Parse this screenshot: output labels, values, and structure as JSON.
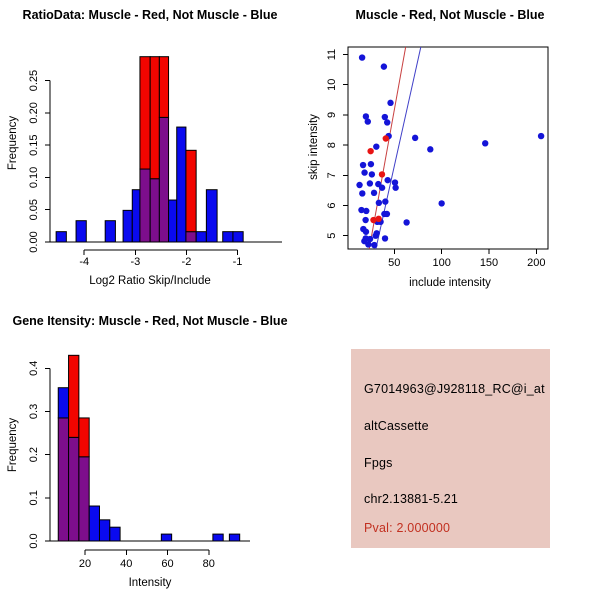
{
  "colors": {
    "red": "#F20500",
    "blue": "#0A0AEF",
    "purple": "#7D0E8C",
    "line_red": "#C84040",
    "line_blue": "#4040C8",
    "point_blue": "#1414D8",
    "point_red": "#E81414",
    "axis": "#000000"
  },
  "chart_data": [
    {
      "id": "ratio_histogram",
      "type": "bar",
      "title": "RatioData: Muscle - Red, Not Muscle - Blue",
      "xlabel": "Log2 Ratio Skip/Include",
      "ylabel": "Frequency",
      "xlim": [
        -4.67,
        -0.13
      ],
      "ylim": [
        0,
        0.302
      ],
      "xticks": [
        -4,
        -3,
        -2,
        -1
      ],
      "yticks": [
        0,
        0.05,
        0.1,
        0.15,
        0.2,
        0.25
      ],
      "ytick_labels": [
        "0.00",
        "0.05",
        "0.10",
        "0.15",
        "0.20",
        "0.25"
      ],
      "bars": [
        {
          "x0": -4.55,
          "x1": -4.35,
          "segments": [
            {
              "color": "blue",
              "from": 0,
              "to": 0.016
            }
          ]
        },
        {
          "x0": -4.16,
          "x1": -3.96,
          "segments": [
            {
              "color": "blue",
              "from": 0,
              "to": 0.033
            }
          ]
        },
        {
          "x0": -3.59,
          "x1": -3.39,
          "segments": [
            {
              "color": "blue",
              "from": 0,
              "to": 0.033
            }
          ]
        },
        {
          "x0": -3.24,
          "x1": -3.06,
          "segments": [
            {
              "color": "blue",
              "from": 0,
              "to": 0.049
            }
          ]
        },
        {
          "x0": -3.06,
          "x1": -2.91,
          "segments": [
            {
              "color": "blue",
              "from": 0,
              "to": 0.081
            }
          ]
        },
        {
          "x0": -2.91,
          "x1": -2.71,
          "segments": [
            {
              "color": "purple",
              "from": 0,
              "to": 0.113
            },
            {
              "color": "red",
              "from": 0.113,
              "to": 0.287
            }
          ]
        },
        {
          "x0": -2.71,
          "x1": -2.53,
          "segments": [
            {
              "color": "purple",
              "from": 0,
              "to": 0.098
            },
            {
              "color": "red",
              "from": 0.098,
              "to": 0.287
            }
          ]
        },
        {
          "x0": -2.53,
          "x1": -2.35,
          "segments": [
            {
              "color": "purple",
              "from": 0,
              "to": 0.193
            },
            {
              "color": "red",
              "from": 0.193,
              "to": 0.287
            }
          ]
        },
        {
          "x0": -2.35,
          "x1": -2.19,
          "segments": [
            {
              "color": "blue",
              "from": 0,
              "to": 0.065
            }
          ]
        },
        {
          "x0": -2.19,
          "x1": -2.01,
          "segments": [
            {
              "color": "blue",
              "from": 0,
              "to": 0.178
            }
          ]
        },
        {
          "x0": -2.01,
          "x1": -1.81,
          "segments": [
            {
              "color": "purple",
              "from": 0,
              "to": 0.016
            },
            {
              "color": "red",
              "from": 0.016,
              "to": 0.142
            }
          ]
        },
        {
          "x0": -1.81,
          "x1": -1.61,
          "segments": [
            {
              "color": "blue",
              "from": 0,
              "to": 0.016
            }
          ]
        },
        {
          "x0": -1.61,
          "x1": -1.4,
          "segments": [
            {
              "color": "blue",
              "from": 0,
              "to": 0.081
            }
          ]
        },
        {
          "x0": -1.29,
          "x1": -1.09,
          "segments": [
            {
              "color": "blue",
              "from": 0,
              "to": 0.016
            }
          ]
        },
        {
          "x0": -1.09,
          "x1": -0.89,
          "segments": [
            {
              "color": "blue",
              "from": 0,
              "to": 0.016
            }
          ]
        }
      ]
    },
    {
      "id": "scatter",
      "type": "scatter",
      "title": "Muscle - Red, Not Muscle - Blue",
      "xlabel": "include intensity",
      "ylabel": "skip intensity",
      "xlim": [
        1.1,
        212.3
      ],
      "ylim": [
        4.56,
        11.25
      ],
      "xticks": [
        50,
        100,
        150,
        200
      ],
      "yticks": [
        5,
        6,
        7,
        8,
        9,
        10,
        11
      ],
      "blue_points": [
        [
          16,
          10.9
        ],
        [
          39,
          10.6
        ],
        [
          46,
          9.4
        ],
        [
          20,
          8.95
        ],
        [
          22,
          8.78
        ],
        [
          40,
          8.93
        ],
        [
          42.5,
          8.75
        ],
        [
          44,
          8.3
        ],
        [
          72,
          8.24
        ],
        [
          88,
          7.86
        ],
        [
          146,
          8.06
        ],
        [
          205,
          8.3
        ],
        [
          31,
          7.95
        ],
        [
          17,
          7.34
        ],
        [
          25.3,
          7.37
        ],
        [
          18.6,
          7.09
        ],
        [
          26.3,
          7.03
        ],
        [
          43,
          6.84
        ],
        [
          13.3,
          6.68
        ],
        [
          24.2,
          6.73
        ],
        [
          33.1,
          6.71
        ],
        [
          37.1,
          6.59
        ],
        [
          50.7,
          6.76
        ],
        [
          51.4,
          6.59
        ],
        [
          16.2,
          6.4
        ],
        [
          28.6,
          6.42
        ],
        [
          33.7,
          6.09
        ],
        [
          40.5,
          6.13
        ],
        [
          100,
          6.07
        ],
        [
          15.3,
          5.85
        ],
        [
          20.4,
          5.82
        ],
        [
          39.5,
          5.72
        ],
        [
          42.2,
          5.72
        ],
        [
          19.7,
          5.52
        ],
        [
          32.1,
          5.46
        ],
        [
          35.5,
          5.46
        ],
        [
          63,
          5.44
        ],
        [
          17.3,
          5.22
        ],
        [
          20.1,
          5.13
        ],
        [
          31.4,
          5.08
        ],
        [
          30.3,
          5.0
        ],
        [
          24.4,
          4.89
        ],
        [
          19.8,
          4.91
        ],
        [
          40.2,
          4.91
        ],
        [
          18.4,
          4.82
        ],
        [
          22.6,
          4.71
        ],
        [
          28.9,
          4.69
        ]
      ],
      "red_points": [
        [
          25,
          7.8
        ],
        [
          37,
          7.03
        ],
        [
          41,
          8.22
        ],
        [
          28,
          5.52
        ],
        [
          33.5,
          5.56
        ]
      ],
      "lines": [
        {
          "color": "line_red",
          "x1": 23.5,
          "y1": 4.56,
          "x2": 62,
          "y2": 11.25
        },
        {
          "color": "line_blue",
          "x1": 30.5,
          "y1": 4.56,
          "x2": 78,
          "y2": 11.25
        }
      ]
    },
    {
      "id": "intensity_histogram",
      "type": "bar",
      "title": "Gene Itensity: Muscle - Red, Not Muscle - Blue",
      "xlabel": "Intensity",
      "ylabel": "Frequency",
      "xlim": [
        3,
        100
      ],
      "ylim": [
        0,
        0.44
      ],
      "xticks": [
        20,
        40,
        60,
        80
      ],
      "yticks": [
        0,
        0.1,
        0.2,
        0.3,
        0.4
      ],
      "ytick_labels": [
        "0.0",
        "0.1",
        "0.2",
        "0.3",
        "0.4"
      ],
      "bars": [
        {
          "x0": 7,
          "x1": 12,
          "segments": [
            {
              "color": "purple",
              "from": 0,
              "to": 0.285
            },
            {
              "color": "blue",
              "from": 0.285,
              "to": 0.355
            }
          ]
        },
        {
          "x0": 12,
          "x1": 17,
          "segments": [
            {
              "color": "purple",
              "from": 0,
              "to": 0.24
            },
            {
              "color": "red",
              "from": 0.24,
              "to": 0.43
            }
          ]
        },
        {
          "x0": 17,
          "x1": 22,
          "segments": [
            {
              "color": "purple",
              "from": 0,
              "to": 0.195
            },
            {
              "color": "red",
              "from": 0.195,
              "to": 0.285
            }
          ]
        },
        {
          "x0": 22,
          "x1": 27,
          "segments": [
            {
              "color": "blue",
              "from": 0,
              "to": 0.081
            }
          ]
        },
        {
          "x0": 27,
          "x1": 32,
          "segments": [
            {
              "color": "blue",
              "from": 0,
              "to": 0.049
            }
          ]
        },
        {
          "x0": 32,
          "x1": 37,
          "segments": [
            {
              "color": "blue",
              "from": 0,
              "to": 0.032
            }
          ]
        },
        {
          "x0": 57,
          "x1": 62,
          "segments": [
            {
              "color": "blue",
              "from": 0,
              "to": 0.016
            }
          ]
        },
        {
          "x0": 82,
          "x1": 87,
          "segments": [
            {
              "color": "blue",
              "from": 0,
              "to": 0.016
            }
          ]
        },
        {
          "x0": 90,
          "x1": 95,
          "segments": [
            {
              "color": "blue",
              "from": 0,
              "to": 0.016
            }
          ]
        }
      ]
    }
  ],
  "info_panel": {
    "bg": "#E9C8C0",
    "lines": [
      {
        "text": "G7014963@J928118_RC@i_at",
        "color": "#000000"
      },
      {
        "text": "altCassette",
        "color": "#000000"
      },
      {
        "text": "Fpgs",
        "color": "#000000"
      },
      {
        "text": "chr2.13881-5.21",
        "color": "#000000"
      },
      {
        "text": "Pval: 2.000000",
        "color": "#C23020"
      }
    ]
  }
}
